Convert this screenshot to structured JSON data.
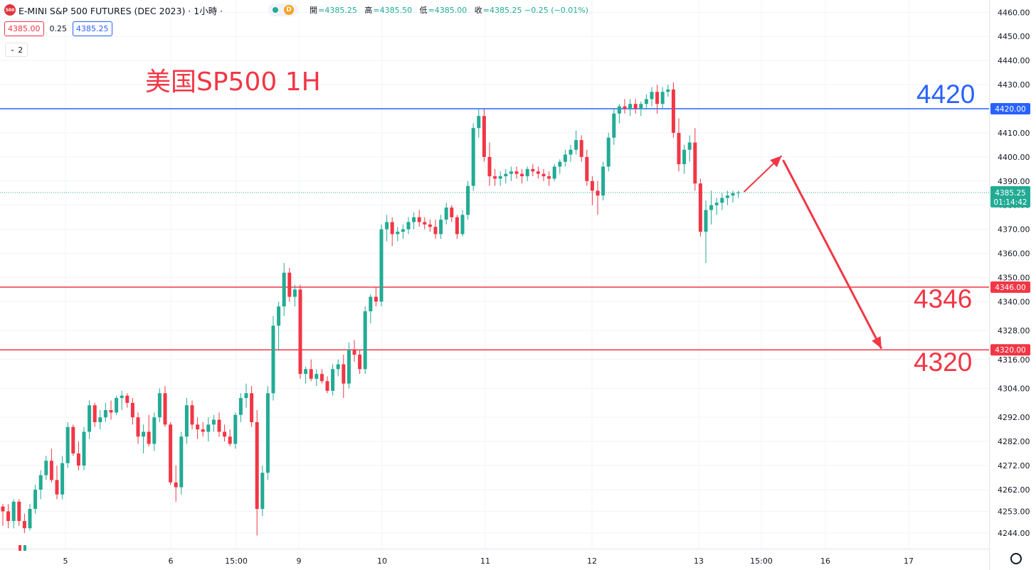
{
  "header": {
    "symbol_badge": "500",
    "title": "E-MINI S&P 500 FUTURES (DEC 2023) · 1小時 ·",
    "delayed_badge": "D",
    "ohlc": [
      {
        "label": "開",
        "value": "=4385.25"
      },
      {
        "label": "高",
        "value": "=4385.50"
      },
      {
        "label": "低",
        "value": "=4385.00"
      },
      {
        "label": "收",
        "value": "=4385.25 −0.25 (−0.01%)"
      }
    ],
    "sell_price": "4385.00",
    "spread": "0.25",
    "buy_price": "4385.25",
    "collapse_count": "2"
  },
  "annotations": {
    "title": "美国SP500 1H",
    "level_4420": "4420",
    "level_4346": "4346",
    "level_4320": "4320"
  },
  "colors": {
    "up": "#22ab94",
    "down": "#f23645",
    "resistance_line": "#2962ff",
    "support_line": "#f23645",
    "arrow": "#f23645"
  },
  "chart_data": {
    "type": "candlestick",
    "timeframe": "1H",
    "ylim": [
      4240,
      4465
    ],
    "y_ticks": [
      "4244.00",
      "4253.00",
      "4262.00",
      "4272.00",
      "4282.00",
      "4292.00",
      "4304.00",
      "4316.00",
      "4328.00",
      "4340.00",
      "4350.00",
      "4360.00",
      "4370.00",
      "4380.00",
      "4390.00",
      "4400.00",
      "4410.00",
      "4420.00",
      "4430.00",
      "4440.00",
      "4450.00",
      "4460.00"
    ],
    "x_ticks": [
      "5",
      "6",
      "15:00",
      "9",
      "10",
      "11",
      "12",
      "13",
      "15:00",
      "16",
      "17"
    ],
    "current_price": {
      "value": 4385.25,
      "label": "4385.25",
      "countdown": "01:14:42"
    },
    "horizontal_lines": [
      {
        "value": 4420.0,
        "label": "4420.00",
        "color": "#2962ff"
      },
      {
        "value": 4346.0,
        "label": "4346.00",
        "color": "#f23645"
      },
      {
        "value": 4320.0,
        "label": "4320.00",
        "color": "#f23645"
      }
    ],
    "projection": [
      {
        "bars_after_last": 0,
        "price": 4385.5
      },
      {
        "bars_after_last": 8.5,
        "price": 4400.5
      },
      {
        "bars_after_last": 31,
        "price": 4320.5
      }
    ],
    "candles": [
      [
        4255,
        4256,
        4247,
        4253
      ],
      [
        4253,
        4256,
        4246,
        4249
      ],
      [
        4249,
        4258,
        4246,
        4257
      ],
      [
        4257,
        4258,
        4247,
        4249
      ],
      [
        4249,
        4252,
        4244,
        4246
      ],
      [
        4246,
        4256,
        4245,
        4254
      ],
      [
        4254,
        4264,
        4252,
        4262
      ],
      [
        4262,
        4270,
        4258,
        4268
      ],
      [
        4268,
        4276,
        4266,
        4274
      ],
      [
        4274,
        4279,
        4265,
        4266
      ],
      [
        4266,
        4272,
        4258,
        4260
      ],
      [
        4260,
        4276,
        4258,
        4273
      ],
      [
        4273,
        4290,
        4271,
        4288
      ],
      [
        4288,
        4289,
        4276,
        4277
      ],
      [
        4277,
        4282,
        4270,
        4272
      ],
      [
        4272,
        4288,
        4270,
        4286
      ],
      [
        4286,
        4299,
        4283,
        4297
      ],
      [
        4297,
        4298,
        4288,
        4290
      ],
      [
        4290,
        4295,
        4287,
        4292
      ],
      [
        4292,
        4298,
        4290,
        4295
      ],
      [
        4295,
        4299,
        4291,
        4294
      ],
      [
        4294,
        4301,
        4293,
        4300
      ],
      [
        4300,
        4303,
        4295,
        4301
      ],
      [
        4301,
        4302,
        4296,
        4298
      ],
      [
        4298,
        4300,
        4289,
        4292
      ],
      [
        4292,
        4294,
        4281,
        4284
      ],
      [
        4284,
        4289,
        4277,
        4286
      ],
      [
        4286,
        4293,
        4280,
        4281
      ],
      [
        4281,
        4294,
        4278,
        4292
      ],
      [
        4292,
        4304,
        4290,
        4302
      ],
      [
        4302,
        4305,
        4288,
        4289
      ],
      [
        4289,
        4290,
        4264,
        4265
      ],
      [
        4265,
        4272,
        4257,
        4263
      ],
      [
        4263,
        4286,
        4260,
        4284
      ],
      [
        4284,
        4300,
        4281,
        4297
      ],
      [
        4297,
        4299,
        4287,
        4289
      ],
      [
        4289,
        4292,
        4283,
        4287
      ],
      [
        4287,
        4290,
        4284,
        4286
      ],
      [
        4286,
        4292,
        4282,
        4289
      ],
      [
        4289,
        4293,
        4286,
        4291
      ],
      [
        4291,
        4294,
        4284,
        4286
      ],
      [
        4286,
        4289,
        4282,
        4284
      ],
      [
        4284,
        4287,
        4280,
        4281
      ],
      [
        4281,
        4294,
        4279,
        4293
      ],
      [
        4293,
        4302,
        4290,
        4300
      ],
      [
        4300,
        4306,
        4296,
        4302
      ],
      [
        4302,
        4305,
        4288,
        4290
      ],
      [
        4290,
        4295,
        4243,
        4254
      ],
      [
        4254,
        4272,
        4251,
        4269
      ],
      [
        4269,
        4305,
        4266,
        4302
      ],
      [
        4302,
        4334,
        4299,
        4330
      ],
      [
        4330,
        4340,
        4320,
        4338
      ],
      [
        4338,
        4356,
        4334,
        4352
      ],
      [
        4352,
        4354,
        4340,
        4342
      ],
      [
        4342,
        4347,
        4338,
        4345
      ],
      [
        4345,
        4347,
        4308,
        4310
      ],
      [
        4310,
        4313,
        4306,
        4312
      ],
      [
        4312,
        4316,
        4307,
        4308
      ],
      [
        4308,
        4312,
        4305,
        4310
      ],
      [
        4310,
        4312,
        4306,
        4307
      ],
      [
        4307,
        4309,
        4302,
        4303
      ],
      [
        4303,
        4314,
        4301,
        4312
      ],
      [
        4312,
        4316,
        4309,
        4314
      ],
      [
        4314,
        4318,
        4300,
        4306
      ],
      [
        4306,
        4323,
        4304,
        4320
      ],
      [
        4320,
        4324,
        4315,
        4318
      ],
      [
        4318,
        4320,
        4310,
        4312
      ],
      [
        4312,
        4338,
        4310,
        4336
      ],
      [
        4336,
        4343,
        4331,
        4342
      ],
      [
        4342,
        4346,
        4338,
        4340
      ],
      [
        4340,
        4372,
        4338,
        4370
      ],
      [
        4370,
        4376,
        4365,
        4373
      ],
      [
        4373,
        4375,
        4363,
        4368
      ],
      [
        4368,
        4371,
        4365,
        4369
      ],
      [
        4369,
        4372,
        4366,
        4370
      ],
      [
        4370,
        4375,
        4368,
        4373
      ],
      [
        4373,
        4377,
        4370,
        4375
      ],
      [
        4375,
        4378,
        4371,
        4373
      ],
      [
        4373,
        4375,
        4370,
        4372
      ],
      [
        4372,
        4374,
        4369,
        4371
      ],
      [
        4371,
        4374,
        4366,
        4368
      ],
      [
        4368,
        4376,
        4366,
        4374
      ],
      [
        4374,
        4381,
        4372,
        4379
      ],
      [
        4379,
        4380,
        4373,
        4375
      ],
      [
        4375,
        4376,
        4366,
        4368
      ],
      [
        4368,
        4378,
        4367,
        4376
      ],
      [
        4376,
        4390,
        4374,
        4388
      ],
      [
        4388,
        4414,
        4386,
        4412
      ],
      [
        4412,
        4420,
        4408,
        4417
      ],
      [
        4417,
        4420,
        4398,
        4400
      ],
      [
        4400,
        4406,
        4388,
        4392
      ],
      [
        4392,
        4395,
        4388,
        4391
      ],
      [
        4391,
        4394,
        4388,
        4392
      ],
      [
        4392,
        4395,
        4389,
        4393
      ],
      [
        4393,
        4396,
        4390,
        4394
      ],
      [
        4394,
        4396,
        4391,
        4393
      ],
      [
        4393,
        4395,
        4389,
        4392
      ],
      [
        4392,
        4396,
        4390,
        4395
      ],
      [
        4395,
        4397,
        4392,
        4394
      ],
      [
        4394,
        4396,
        4391,
        4393
      ],
      [
        4393,
        4395,
        4390,
        4392
      ],
      [
        4392,
        4394,
        4388,
        4391
      ],
      [
        4391,
        4397,
        4390,
        4396
      ],
      [
        4396,
        4399,
        4393,
        4398
      ],
      [
        4398,
        4403,
        4396,
        4401
      ],
      [
        4401,
        4405,
        4398,
        4403
      ],
      [
        4403,
        4411,
        4401,
        4407
      ],
      [
        4407,
        4409,
        4398,
        4400
      ],
      [
        4400,
        4403,
        4388,
        4390
      ],
      [
        4390,
        4392,
        4380,
        4386
      ],
      [
        4386,
        4390,
        4376,
        4384
      ],
      [
        4384,
        4398,
        4382,
        4396
      ],
      [
        4396,
        4410,
        4394,
        4408
      ],
      [
        4408,
        4420,
        4405,
        4418
      ],
      [
        4418,
        4422,
        4414,
        4421
      ],
      [
        4421,
        4424,
        4418,
        4420
      ],
      [
        4420,
        4424,
        4417,
        4422
      ],
      [
        4422,
        4424,
        4418,
        4420
      ],
      [
        4420,
        4423,
        4417,
        4422
      ],
      [
        4422,
        4426,
        4420,
        4424
      ],
      [
        4424,
        4429,
        4421,
        4427
      ],
      [
        4427,
        4430,
        4418,
        4422
      ],
      [
        4422,
        4429,
        4420,
        4427
      ],
      [
        4427,
        4430,
        4425,
        4428
      ],
      [
        4428,
        4431,
        4408,
        4410
      ],
      [
        4410,
        4416,
        4394,
        4397
      ],
      [
        4397,
        4405,
        4393,
        4403
      ],
      [
        4403,
        4409,
        4398,
        4406
      ],
      [
        4406,
        4412,
        4386,
        4389
      ],
      [
        4389,
        4391,
        4367,
        4369
      ],
      [
        4369,
        4382,
        4356,
        4378
      ],
      [
        4378,
        4386,
        4372,
        4380
      ],
      [
        4380,
        4383,
        4376,
        4381
      ],
      [
        4381,
        4385,
        4378,
        4383
      ],
      [
        4383,
        4386,
        4380,
        4384
      ],
      [
        4384,
        4386,
        4381,
        4385
      ],
      [
        4385,
        4386,
        4383,
        4385.25
      ]
    ]
  }
}
